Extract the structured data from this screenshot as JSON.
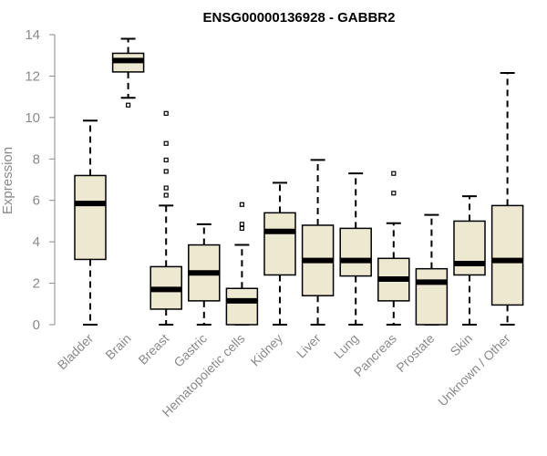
{
  "chart_data": {
    "type": "boxplot",
    "title": "ENSG00000136928 - GABBR2",
    "xlabel": "",
    "ylabel": "Expression",
    "ylim": [
      0,
      14
    ],
    "yticks": [
      0,
      2,
      4,
      6,
      8,
      10,
      12,
      14
    ],
    "box_fill": "#ede8d0",
    "box_stroke": "#000000",
    "axis_color": "#8a8a8a",
    "categories": [
      "Bladder",
      "Brain",
      "Breast",
      "Gastric",
      "Hematopoietic cells",
      "Kidney",
      "Liver",
      "Lung",
      "Pancreas",
      "Prostate",
      "Skin",
      "Unknown / Other"
    ],
    "series": [
      {
        "name": "Bladder",
        "whisker_low": 0.0,
        "q1": 3.15,
        "median": 5.85,
        "q3": 7.2,
        "whisker_high": 9.85,
        "outliers": []
      },
      {
        "name": "Brain",
        "whisker_low": 10.95,
        "q1": 12.2,
        "median": 12.75,
        "q3": 13.1,
        "whisker_high": 13.8,
        "outliers": [
          10.6
        ]
      },
      {
        "name": "Breast",
        "whisker_low": 0.0,
        "q1": 0.75,
        "median": 1.7,
        "q3": 2.8,
        "whisker_high": 5.75,
        "outliers": [
          6.25,
          6.6,
          7.4,
          7.95,
          8.75,
          10.2
        ]
      },
      {
        "name": "Gastric",
        "whisker_low": 0.0,
        "q1": 1.15,
        "median": 2.5,
        "q3": 3.85,
        "whisker_high": 4.85,
        "outliers": []
      },
      {
        "name": "Hematopoietic cells",
        "whisker_low": 0.0,
        "q1": 0.0,
        "median": 1.15,
        "q3": 1.75,
        "whisker_high": 3.85,
        "outliers": [
          4.65,
          4.85,
          5.8
        ]
      },
      {
        "name": "Kidney",
        "whisker_low": 0.0,
        "q1": 2.4,
        "median": 4.5,
        "q3": 5.4,
        "whisker_high": 6.85,
        "outliers": []
      },
      {
        "name": "Liver",
        "whisker_low": 0.0,
        "q1": 1.4,
        "median": 3.1,
        "q3": 4.8,
        "whisker_high": 7.95,
        "outliers": []
      },
      {
        "name": "Lung",
        "whisker_low": 0.0,
        "q1": 2.35,
        "median": 3.1,
        "q3": 4.65,
        "whisker_high": 7.3,
        "outliers": []
      },
      {
        "name": "Pancreas",
        "whisker_low": 0.0,
        "q1": 1.15,
        "median": 2.2,
        "q3": 3.2,
        "whisker_high": 4.9,
        "outliers": [
          6.35,
          7.3
        ]
      },
      {
        "name": "Prostate",
        "whisker_low": 0.0,
        "q1": 0.0,
        "median": 2.05,
        "q3": 2.7,
        "whisker_high": 5.3,
        "outliers": []
      },
      {
        "name": "Skin",
        "whisker_low": 0.0,
        "q1": 2.4,
        "median": 2.95,
        "q3": 5.0,
        "whisker_high": 6.2,
        "outliers": []
      },
      {
        "name": "Unknown / Other",
        "whisker_low": 0.0,
        "q1": 0.95,
        "median": 3.1,
        "q3": 5.75,
        "whisker_high": 12.15,
        "outliers": []
      }
    ]
  }
}
